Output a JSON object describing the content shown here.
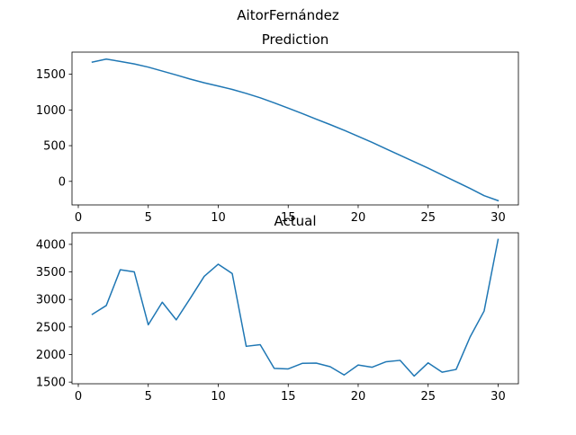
{
  "suptitle": "AitorFernández",
  "chart_data": [
    {
      "type": "line",
      "title": "Prediction",
      "xlabel": "",
      "ylabel": "",
      "x": [
        1,
        2,
        3,
        4,
        5,
        6,
        7,
        8,
        9,
        10,
        11,
        12,
        13,
        14,
        15,
        16,
        17,
        18,
        19,
        20,
        21,
        22,
        23,
        24,
        25,
        26,
        27,
        28,
        29,
        30
      ],
      "series": [
        {
          "color": "#1f77b4",
          "values": [
            1670,
            1712,
            1680,
            1645,
            1600,
            1545,
            1490,
            1432,
            1380,
            1335,
            1288,
            1232,
            1170,
            1100,
            1025,
            950,
            872,
            795,
            715,
            630,
            545,
            455,
            365,
            275,
            185,
            90,
            -5,
            -100,
            -200,
            -270
          ]
        }
      ],
      "xlim": [
        -0.45,
        31.45
      ],
      "ylim": [
        -330,
        1810
      ],
      "xticks": [
        0,
        5,
        10,
        15,
        20,
        25,
        30
      ],
      "yticks": [
        0,
        500,
        1000,
        1500
      ],
      "grid": false
    },
    {
      "type": "line",
      "title": "Actual",
      "xlabel": "",
      "ylabel": "",
      "x": [
        1,
        2,
        3,
        4,
        5,
        6,
        7,
        8,
        9,
        10,
        11,
        12,
        13,
        14,
        15,
        16,
        17,
        18,
        19,
        20,
        21,
        22,
        23,
        24,
        25,
        26,
        27,
        28,
        29,
        30
      ],
      "series": [
        {
          "color": "#1f77b4",
          "values": [
            2730,
            2890,
            3540,
            3500,
            2540,
            2950,
            2630,
            3020,
            3420,
            3640,
            3470,
            2150,
            2180,
            1750,
            1740,
            1840,
            1845,
            1780,
            1630,
            1810,
            1770,
            1870,
            1895,
            1610,
            1850,
            1680,
            1730,
            2320,
            2790,
            4090
          ]
        }
      ],
      "xlim": [
        -0.45,
        31.45
      ],
      "ylim": [
        1470,
        4210
      ],
      "xticks": [
        0,
        5,
        10,
        15,
        20,
        25,
        30
      ],
      "yticks": [
        1500,
        2000,
        2500,
        3000,
        3500,
        4000
      ],
      "grid": false
    }
  ]
}
